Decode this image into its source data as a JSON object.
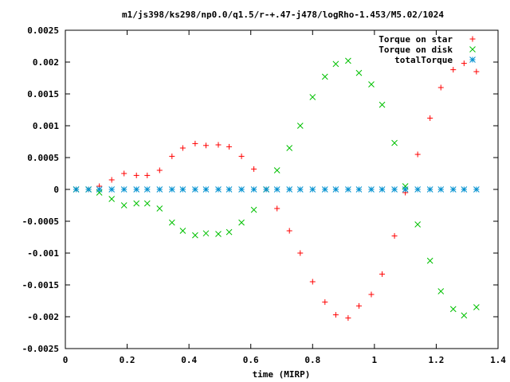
{
  "chart_data": {
    "type": "scatter",
    "title": "m1/js398/ks298/np0.0/q1.5/r-+.47-j478/logRho-1.453/M5.02/1024",
    "xlabel": "time (MIRP)",
    "ylabel": "",
    "xlim": [
      0,
      1.4
    ],
    "ylim": [
      -0.0025,
      0.0025
    ],
    "xticks": [
      "0",
      "0.2",
      "0.4",
      "0.6",
      "0.8",
      "1",
      "1.2",
      "1.4"
    ],
    "yticks": [
      "0.0025",
      "0.002",
      "0.0015",
      "0.001",
      "0.0005",
      "0",
      "-0.0005",
      "-0.001",
      "-0.0015",
      "-0.002",
      "-0.0025"
    ],
    "legend_position": "top-right",
    "grid": false,
    "series": [
      {
        "name": "Torque on star",
        "marker": "plus",
        "color": "#ff0000",
        "points": [
          [
            0.035,
            0
          ],
          [
            0.075,
            0
          ],
          [
            0.11,
            5e-05
          ],
          [
            0.15,
            0.00015
          ],
          [
            0.19,
            0.00025
          ],
          [
            0.23,
            0.00022
          ],
          [
            0.265,
            0.00022
          ],
          [
            0.305,
            0.0003
          ],
          [
            0.345,
            0.00052
          ],
          [
            0.38,
            0.00065
          ],
          [
            0.42,
            0.00072
          ],
          [
            0.455,
            0.00069
          ],
          [
            0.495,
            0.0007
          ],
          [
            0.53,
            0.00067
          ],
          [
            0.57,
            0.00052
          ],
          [
            0.61,
            0.00032
          ],
          [
            0.65,
            0
          ],
          [
            0.685,
            -0.0003
          ],
          [
            0.725,
            -0.00065
          ],
          [
            0.76,
            -0.001
          ],
          [
            0.8,
            -0.00145
          ],
          [
            0.84,
            -0.00177
          ],
          [
            0.875,
            -0.00197
          ],
          [
            0.915,
            -0.00202
          ],
          [
            0.95,
            -0.00183
          ],
          [
            0.99,
            -0.00165
          ],
          [
            1.025,
            -0.00133
          ],
          [
            1.065,
            -0.00073
          ],
          [
            1.1,
            -5e-05
          ],
          [
            1.14,
            0.00055
          ],
          [
            1.18,
            0.00112
          ],
          [
            1.215,
            0.0016
          ],
          [
            1.255,
            0.00188
          ],
          [
            1.29,
            0.00198
          ],
          [
            1.33,
            0.00185
          ]
        ]
      },
      {
        "name": "Torque on disk",
        "marker": "cross",
        "color": "#00c000",
        "points": [
          [
            0.035,
            0
          ],
          [
            0.075,
            0
          ],
          [
            0.11,
            -5e-05
          ],
          [
            0.15,
            -0.00015
          ],
          [
            0.19,
            -0.00025
          ],
          [
            0.23,
            -0.00022
          ],
          [
            0.265,
            -0.00022
          ],
          [
            0.305,
            -0.0003
          ],
          [
            0.345,
            -0.00052
          ],
          [
            0.38,
            -0.00065
          ],
          [
            0.42,
            -0.00072
          ],
          [
            0.455,
            -0.00069
          ],
          [
            0.495,
            -0.0007
          ],
          [
            0.53,
            -0.00067
          ],
          [
            0.57,
            -0.00052
          ],
          [
            0.61,
            -0.00032
          ],
          [
            0.65,
            0
          ],
          [
            0.685,
            0.0003
          ],
          [
            0.725,
            0.00065
          ],
          [
            0.76,
            0.001
          ],
          [
            0.8,
            0.00145
          ],
          [
            0.84,
            0.00177
          ],
          [
            0.875,
            0.00197
          ],
          [
            0.915,
            0.00202
          ],
          [
            0.95,
            0.00183
          ],
          [
            0.99,
            0.00165
          ],
          [
            1.025,
            0.00133
          ],
          [
            1.065,
            0.00073
          ],
          [
            1.1,
            5e-05
          ],
          [
            1.14,
            -0.00055
          ],
          [
            1.18,
            -0.00112
          ],
          [
            1.215,
            -0.0016
          ],
          [
            1.255,
            -0.00188
          ],
          [
            1.29,
            -0.00198
          ],
          [
            1.33,
            -0.00185
          ]
        ]
      },
      {
        "name": "totalTorque",
        "marker": "star",
        "color": "#0090d0",
        "points": [
          [
            0.035,
            0
          ],
          [
            0.075,
            0
          ],
          [
            0.11,
            0
          ],
          [
            0.15,
            0
          ],
          [
            0.19,
            0
          ],
          [
            0.23,
            0
          ],
          [
            0.265,
            0
          ],
          [
            0.305,
            0
          ],
          [
            0.345,
            0
          ],
          [
            0.38,
            0
          ],
          [
            0.42,
            0
          ],
          [
            0.455,
            0
          ],
          [
            0.495,
            0
          ],
          [
            0.53,
            0
          ],
          [
            0.57,
            0
          ],
          [
            0.61,
            0
          ],
          [
            0.65,
            0
          ],
          [
            0.685,
            0
          ],
          [
            0.725,
            0
          ],
          [
            0.76,
            0
          ],
          [
            0.8,
            0
          ],
          [
            0.84,
            0
          ],
          [
            0.875,
            0
          ],
          [
            0.915,
            0
          ],
          [
            0.95,
            0
          ],
          [
            0.99,
            0
          ],
          [
            1.025,
            0
          ],
          [
            1.065,
            0
          ],
          [
            1.1,
            0
          ],
          [
            1.14,
            0
          ],
          [
            1.18,
            0
          ],
          [
            1.215,
            0
          ],
          [
            1.255,
            0
          ],
          [
            1.29,
            0
          ],
          [
            1.33,
            0
          ]
        ]
      }
    ]
  }
}
